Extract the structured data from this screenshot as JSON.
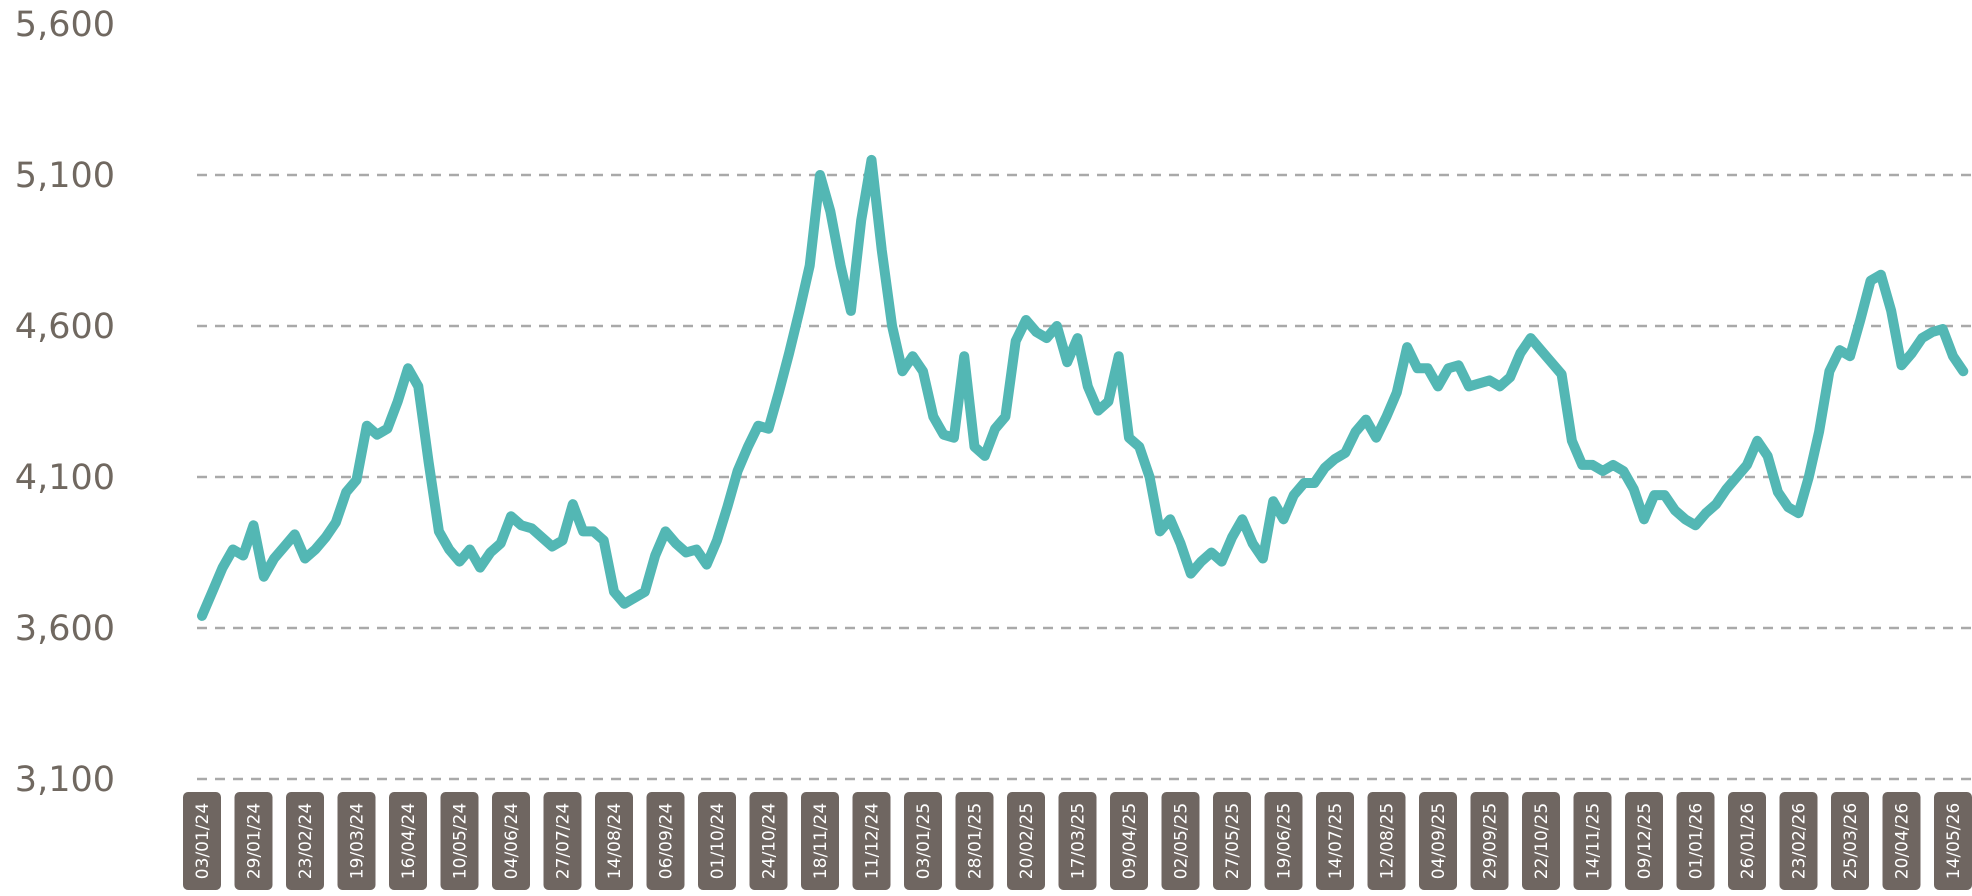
{
  "chart_data": {
    "type": "line",
    "title": "",
    "xlabel": "",
    "ylabel": "",
    "ylim": [
      3100,
      5600
    ],
    "yticks": [
      "5,600",
      "5,100",
      "4,600",
      "4,100",
      "3,600",
      "3,100"
    ],
    "grid": true,
    "line_color": "#53b7b4",
    "tick_box_color": "#6f6661",
    "grid_color": "#a9a9a9",
    "xticks": [
      "03/01/24",
      "29/01/24",
      "23/02/24",
      "19/03/24",
      "16/04/24",
      "10/05/24",
      "04/06/24",
      "27/07/24",
      "14/08/24",
      "06/09/24",
      "01/10/24",
      "24/10/24",
      "18/11/24",
      "11/12/24",
      "03/01/25",
      "28/01/25",
      "20/02/25",
      "17/03/25",
      "09/04/25",
      "02/05/25",
      "27/05/25",
      "19/06/25",
      "14/07/25",
      "12/08/25",
      "04/09/25",
      "29/09/25",
      "22/10/25",
      "14/11/25",
      "09/12/25",
      "01/01/26",
      "26/01/26",
      "23/02/26",
      "25/03/26",
      "20/04/26",
      "14/05/26"
    ],
    "series": [
      {
        "x": [
          0,
          0.2,
          0.4,
          0.6,
          0.8,
          1.0,
          1.2,
          1.4,
          1.6,
          1.8,
          2.0,
          2.2,
          2.4,
          2.6,
          2.8,
          3.0,
          3.2,
          3.4,
          3.6,
          3.8,
          4.0,
          4.2,
          4.4,
          4.6,
          4.8,
          5.0,
          5.2,
          5.4,
          5.6,
          5.8,
          6.0,
          6.2,
          6.4,
          6.6,
          6.8,
          7.0,
          7.2,
          7.4,
          7.6,
          7.8,
          8.0,
          8.2,
          8.4,
          8.6,
          8.8,
          9.0,
          9.2,
          9.4,
          9.6,
          9.8,
          10.0,
          10.2,
          10.4,
          10.6,
          10.8,
          11.0,
          11.2,
          11.4,
          11.6,
          11.8,
          12.0,
          12.2,
          12.4,
          12.6,
          12.8,
          13.0,
          13.2,
          13.4,
          13.6,
          13.8,
          14.0,
          14.2,
          14.4,
          14.6,
          14.8,
          15.0,
          15.2,
          15.4,
          15.6,
          15.8,
          16.0,
          16.2,
          16.4,
          16.6,
          16.8,
          17.0,
          17.2,
          17.4,
          17.6,
          17.8,
          18.0,
          18.2,
          18.4,
          18.6,
          18.8,
          19.0,
          19.2,
          19.4,
          19.6,
          19.8,
          20.0,
          20.2,
          20.4,
          20.6,
          20.8,
          21.0,
          21.2,
          21.4,
          21.6,
          21.8,
          22.0,
          22.2,
          22.4,
          22.6,
          22.8,
          23.0,
          23.2,
          23.4,
          23.6,
          23.8,
          24.0,
          24.2,
          24.4,
          24.6,
          24.8,
          25.0,
          25.2,
          25.4,
          25.6,
          25.8,
          26.0,
          26.2,
          26.4,
          26.6,
          26.8,
          27.0,
          27.2,
          27.4,
          27.6,
          27.8,
          28.0,
          28.2,
          28.4,
          28.6,
          28.8,
          29.0,
          29.2,
          29.4,
          29.6,
          29.8,
          30.0,
          30.2,
          30.4,
          30.6,
          30.8,
          31.0,
          31.2,
          31.4,
          31.6,
          31.8,
          32.0,
          32.2,
          32.4,
          32.6,
          32.8,
          33.0,
          33.2,
          33.4,
          33.6,
          33.8,
          34.0,
          34.2
        ],
        "y": [
          3640,
          3720,
          3800,
          3860,
          3840,
          3940,
          3770,
          3830,
          3870,
          3910,
          3830,
          3860,
          3900,
          3950,
          4050,
          4090,
          4270,
          4240,
          4260,
          4350,
          4460,
          4400,
          4150,
          3920,
          3860,
          3820,
          3860,
          3800,
          3850,
          3880,
          3970,
          3940,
          3930,
          3900,
          3870,
          3890,
          4010,
          3920,
          3920,
          3890,
          3720,
          3680,
          3700,
          3720,
          3840,
          3920,
          3880,
          3850,
          3860,
          3810,
          3890,
          4000,
          4120,
          4200,
          4270,
          4260,
          4380,
          4510,
          4650,
          4800,
          5100,
          4980,
          4800,
          4650,
          4950,
          5150,
          4850,
          4600,
          4450,
          4500,
          4450,
          4300,
          4240,
          4230,
          4500,
          4200,
          4170,
          4260,
          4300,
          4550,
          4620,
          4580,
          4560,
          4600,
          4480,
          4560,
          4400,
          4320,
          4350,
          4500,
          4230,
          4200,
          4100,
          3920,
          3960,
          3880,
          3780,
          3820,
          3850,
          3820,
          3900,
          3960,
          3880,
          3830,
          4020,
          3960,
          4040,
          4080,
          4080,
          4130,
          4160,
          4180,
          4250,
          4290,
          4230,
          4300,
          4380,
          4530,
          4460,
          4460,
          4400,
          4460,
          4470,
          4400,
          4410,
          4420,
          4400,
          4430,
          4510,
          4560,
          4520,
          4480,
          4440,
          4220,
          4140,
          4140,
          4120,
          4140,
          4120,
          4060,
          3960,
          4040,
          4040,
          3990,
          3960,
          3940,
          3980,
          4010,
          4060,
          4100,
          4140,
          4220,
          4170,
          4050,
          4000,
          3980,
          4100,
          4250,
          4450,
          4520,
          4500,
          4620,
          4750,
          4770,
          4650,
          4470,
          4510,
          4560,
          4580,
          4590,
          4500,
          4450
        ]
      }
    ]
  }
}
